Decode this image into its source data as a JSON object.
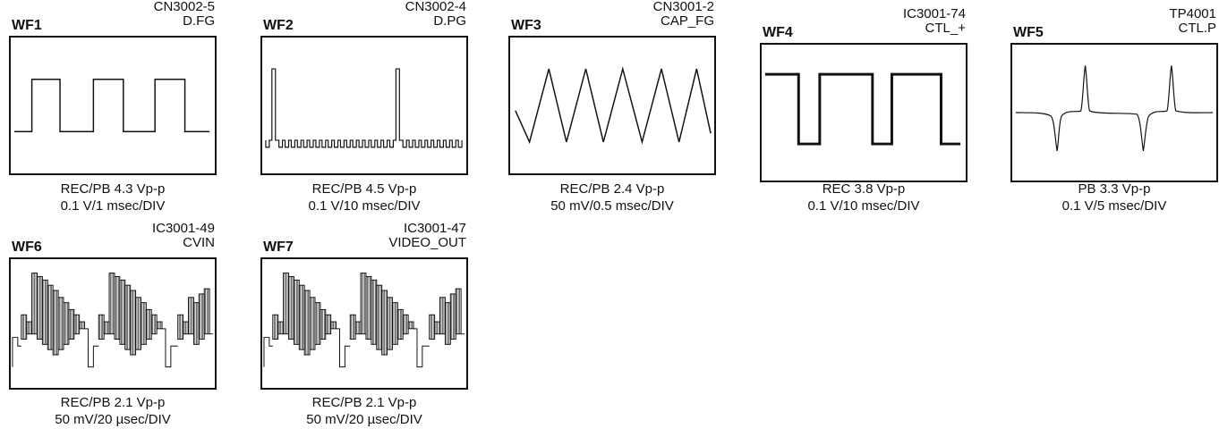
{
  "waveforms": [
    {
      "id": "WF1",
      "source": "CN3002-5",
      "signal": "D.FG",
      "mode": "REC/PB  4.3 Vp-p",
      "scale": "0.1 V/1 msec/DIV",
      "waveform_icon": "square-wave"
    },
    {
      "id": "WF2",
      "source": "CN3002-4",
      "signal": "D.PG",
      "mode": "REC/PB  4.5 Vp-p",
      "scale": "0.1 V/10 msec/DIV",
      "waveform_icon": "pulse-train"
    },
    {
      "id": "WF3",
      "source": "CN3001-2",
      "signal": "CAP_FG",
      "mode": "REC/PB  2.4 Vp-p",
      "scale": "50 mV/0.5 msec/DIV",
      "waveform_icon": "triangle-wave"
    },
    {
      "id": "WF4",
      "source": "IC3001-74",
      "signal": "CTL_+",
      "mode": "REC  3.8 Vp-p",
      "scale": "0.1 V/10 msec/DIV",
      "waveform_icon": "square-wave-thick"
    },
    {
      "id": "WF5",
      "source": "TP4001",
      "signal": "CTL.P",
      "mode": "PB  3.3 Vp-p",
      "scale": "0.1 V/5 msec/DIV",
      "waveform_icon": "spike-pair"
    },
    {
      "id": "WF6",
      "source": "IC3001-49",
      "signal": "CVIN",
      "mode": "REC/PB  2.1 Vp-p",
      "scale": "50 mV/20 µsec/DIV",
      "waveform_icon": "video-signal"
    },
    {
      "id": "WF7",
      "source": "IC3001-47",
      "signal": "VIDEO_OUT",
      "mode": "REC/PB  2.1 Vp-p",
      "scale": "50 mV/20 µsec/DIV",
      "waveform_icon": "video-signal"
    }
  ]
}
